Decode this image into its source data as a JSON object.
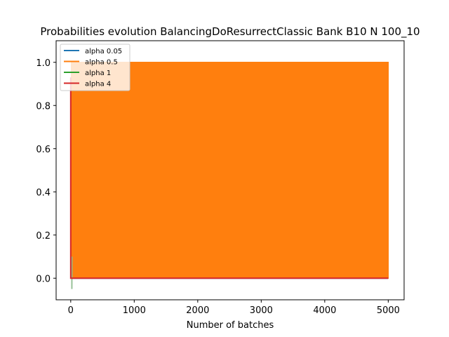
{
  "chart_data": {
    "type": "line",
    "title": "Probabilities evolution BalancingDoResurrectClassic Bank B10 N 100_10",
    "xlabel": "Number of batches",
    "ylabel": "",
    "xlim": [
      -230,
      5250
    ],
    "ylim": [
      -0.1,
      1.1
    ],
    "xticks": [
      0,
      1000,
      2000,
      3000,
      4000,
      5000
    ],
    "yticks": [
      0.0,
      0.2,
      0.4,
      0.6,
      0.8,
      1.0
    ],
    "grid": false,
    "legend_position": "top-left",
    "series": [
      {
        "name": "alpha 0.05",
        "color": "#1f77b4",
        "description_points": [
          [
            0,
            0.0
          ],
          [
            10,
            0.0
          ],
          [
            5000,
            0.0
          ]
        ]
      },
      {
        "name": "alpha 0.5",
        "color": "#ff7f0e",
        "oscillation_range": [
          0.0,
          1.0
        ],
        "x_range": [
          10,
          5000
        ]
      },
      {
        "name": "alpha 1",
        "color": "#2ca02c",
        "x_range": [
          0,
          40
        ],
        "y_range": [
          -0.05,
          0.1
        ]
      },
      {
        "name": "alpha 4",
        "color": "#d62728",
        "points": [
          [
            0,
            0.93
          ],
          [
            0,
            0.0
          ],
          [
            5000,
            0.0
          ]
        ]
      }
    ]
  }
}
